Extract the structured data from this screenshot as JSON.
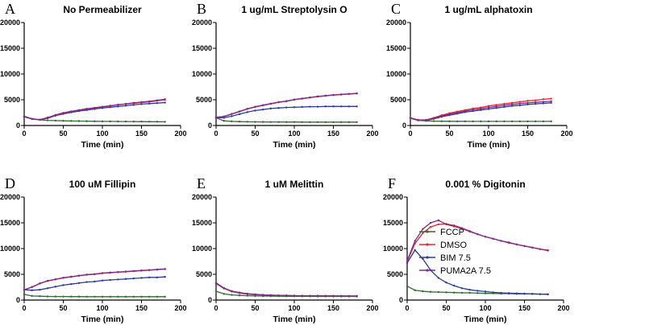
{
  "chart_data": {
    "type": "line",
    "x": [
      0,
      10,
      20,
      30,
      40,
      50,
      60,
      70,
      80,
      90,
      100,
      110,
      120,
      130,
      140,
      150,
      160,
      170,
      180
    ],
    "xlabel": "Time (min)",
    "xlim": [
      0,
      200
    ],
    "xticks": [
      0,
      50,
      100,
      150,
      200
    ],
    "ylim": [
      0,
      20000
    ],
    "yticks": [
      0,
      5000,
      10000,
      15000,
      20000
    ],
    "legend": {
      "placement": "right of panel F"
    },
    "series_meta": [
      {
        "name": "FCCP",
        "color": "#2e6b2e"
      },
      {
        "name": "DMSO",
        "color": "#e8262c"
      },
      {
        "name": "BIM 7.5",
        "color": "#2b3a9a"
      },
      {
        "name": "PUMA2A 7.5",
        "color": "#7b2d8e"
      }
    ],
    "panels": [
      {
        "letter": "A",
        "title": "No Permeabilizer",
        "series": [
          [
            1700,
            1300,
            1100,
            1000,
            950,
            900,
            880,
            860,
            840,
            820,
            800,
            790,
            780,
            770,
            760,
            750,
            740,
            730,
            720
          ],
          [
            1800,
            1300,
            1100,
            1500,
            2000,
            2400,
            2700,
            2950,
            3200,
            3400,
            3600,
            3800,
            4000,
            4150,
            4300,
            4450,
            4600,
            4800,
            5000
          ],
          [
            1700,
            1250,
            1100,
            1400,
            1900,
            2250,
            2550,
            2800,
            3000,
            3200,
            3400,
            3550,
            3700,
            3850,
            4000,
            4150,
            4250,
            4350,
            4450
          ],
          [
            1800,
            1300,
            1150,
            1550,
            2050,
            2450,
            2750,
            3000,
            3250,
            3450,
            3650,
            3850,
            4050,
            4200,
            4400,
            4550,
            4700,
            4900,
            5100
          ]
        ]
      },
      {
        "letter": "B",
        "title": "1 ug/mL Streptolysin O",
        "series": [
          [
            1500,
            900,
            800,
            750,
            720,
            700,
            690,
            680,
            680,
            670,
            670,
            660,
            660,
            660,
            650,
            650,
            650,
            650,
            650
          ],
          [
            1600,
            1700,
            2200,
            2700,
            3200,
            3600,
            3900,
            4200,
            4500,
            4700,
            5000,
            5200,
            5400,
            5600,
            5750,
            5900,
            6000,
            6100,
            6200
          ],
          [
            1500,
            1500,
            1800,
            2200,
            2600,
            2900,
            3100,
            3300,
            3400,
            3500,
            3550,
            3600,
            3650,
            3650,
            3700,
            3700,
            3700,
            3700,
            3700
          ],
          [
            1600,
            1750,
            2250,
            2750,
            3250,
            3650,
            3950,
            4250,
            4550,
            4750,
            5050,
            5250,
            5450,
            5650,
            5800,
            5950,
            6050,
            6150,
            6250
          ]
        ]
      },
      {
        "letter": "C",
        "title": "1 ug/mL alphatoxin",
        "series": [
          [
            1400,
            1000,
            900,
            850,
            830,
            820,
            810,
            810,
            800,
            800,
            800,
            800,
            800,
            800,
            800,
            800,
            800,
            800,
            800
          ],
          [
            1500,
            1100,
            1100,
            1500,
            2000,
            2400,
            2700,
            3000,
            3300,
            3500,
            3800,
            4000,
            4200,
            4400,
            4600,
            4800,
            4900,
            5100,
            5200
          ],
          [
            1400,
            1000,
            1000,
            1300,
            1700,
            2000,
            2300,
            2600,
            2800,
            3000,
            3200,
            3400,
            3600,
            3800,
            3900,
            4100,
            4200,
            4300,
            4400
          ],
          [
            1450,
            1050,
            1050,
            1400,
            1850,
            2200,
            2500,
            2800,
            3050,
            3250,
            3500,
            3700,
            3900,
            4100,
            4250,
            4400,
            4500,
            4600,
            4700
          ]
        ]
      },
      {
        "letter": "D",
        "title": "100 uM Fillipin",
        "series": [
          [
            1100,
            800,
            750,
            700,
            690,
            680,
            670,
            670,
            660,
            660,
            660,
            650,
            650,
            650,
            650,
            650,
            650,
            650,
            650
          ],
          [
            2000,
            2500,
            3200,
            3700,
            4000,
            4300,
            4500,
            4700,
            4900,
            5000,
            5200,
            5300,
            5400,
            5500,
            5600,
            5700,
            5800,
            5900,
            6000
          ],
          [
            2000,
            1900,
            2000,
            2300,
            2600,
            2900,
            3100,
            3300,
            3500,
            3600,
            3800,
            3900,
            4000,
            4100,
            4200,
            4300,
            4400,
            4400,
            4500
          ],
          [
            2000,
            2550,
            3250,
            3750,
            4050,
            4350,
            4550,
            4750,
            4950,
            5050,
            5250,
            5350,
            5450,
            5550,
            5650,
            5750,
            5850,
            5950,
            6050
          ]
        ]
      },
      {
        "letter": "E",
        "title": "1 uM Melittin",
        "series": [
          [
            1700,
            1200,
            1000,
            900,
            850,
            800,
            780,
            760,
            750,
            740,
            730,
            720,
            720,
            710,
            710,
            700,
            700,
            700,
            700
          ],
          [
            3300,
            2300,
            1700,
            1400,
            1200,
            1100,
            1000,
            950,
            900,
            880,
            850,
            830,
            820,
            810,
            800,
            800,
            790,
            780,
            780
          ],
          [
            3200,
            2250,
            1650,
            1350,
            1150,
            1050,
            980,
            930,
            890,
            870,
            840,
            820,
            810,
            800,
            790,
            790,
            780,
            770,
            770
          ],
          [
            3350,
            2350,
            1750,
            1450,
            1250,
            1120,
            1020,
            960,
            910,
            890,
            860,
            840,
            830,
            820,
            810,
            800,
            800,
            790,
            790
          ]
        ]
      },
      {
        "letter": "F",
        "title": "0.001 % Digitonin",
        "series": [
          [
            2700,
            1900,
            1700,
            1600,
            1550,
            1500,
            1450,
            1400,
            1400,
            1350,
            1300,
            1300,
            1250,
            1250,
            1200,
            1200,
            1200,
            1150,
            1150
          ],
          [
            7500,
            11000,
            13000,
            14200,
            14700,
            14800,
            14500,
            14000,
            13400,
            12800,
            12300,
            11900,
            11500,
            11100,
            10800,
            10500,
            10200,
            9900,
            9700
          ],
          [
            7200,
            9700,
            8000,
            5800,
            4300,
            3400,
            2800,
            2300,
            2000,
            1800,
            1650,
            1500,
            1400,
            1350,
            1300,
            1250,
            1200,
            1150,
            1100
          ],
          [
            7600,
            11500,
            13800,
            15000,
            15500,
            14700,
            14300,
            13900,
            13300,
            12800,
            12300,
            11900,
            11500,
            11200,
            10800,
            10500,
            10200,
            9900,
            9600
          ]
        ]
      }
    ]
  }
}
